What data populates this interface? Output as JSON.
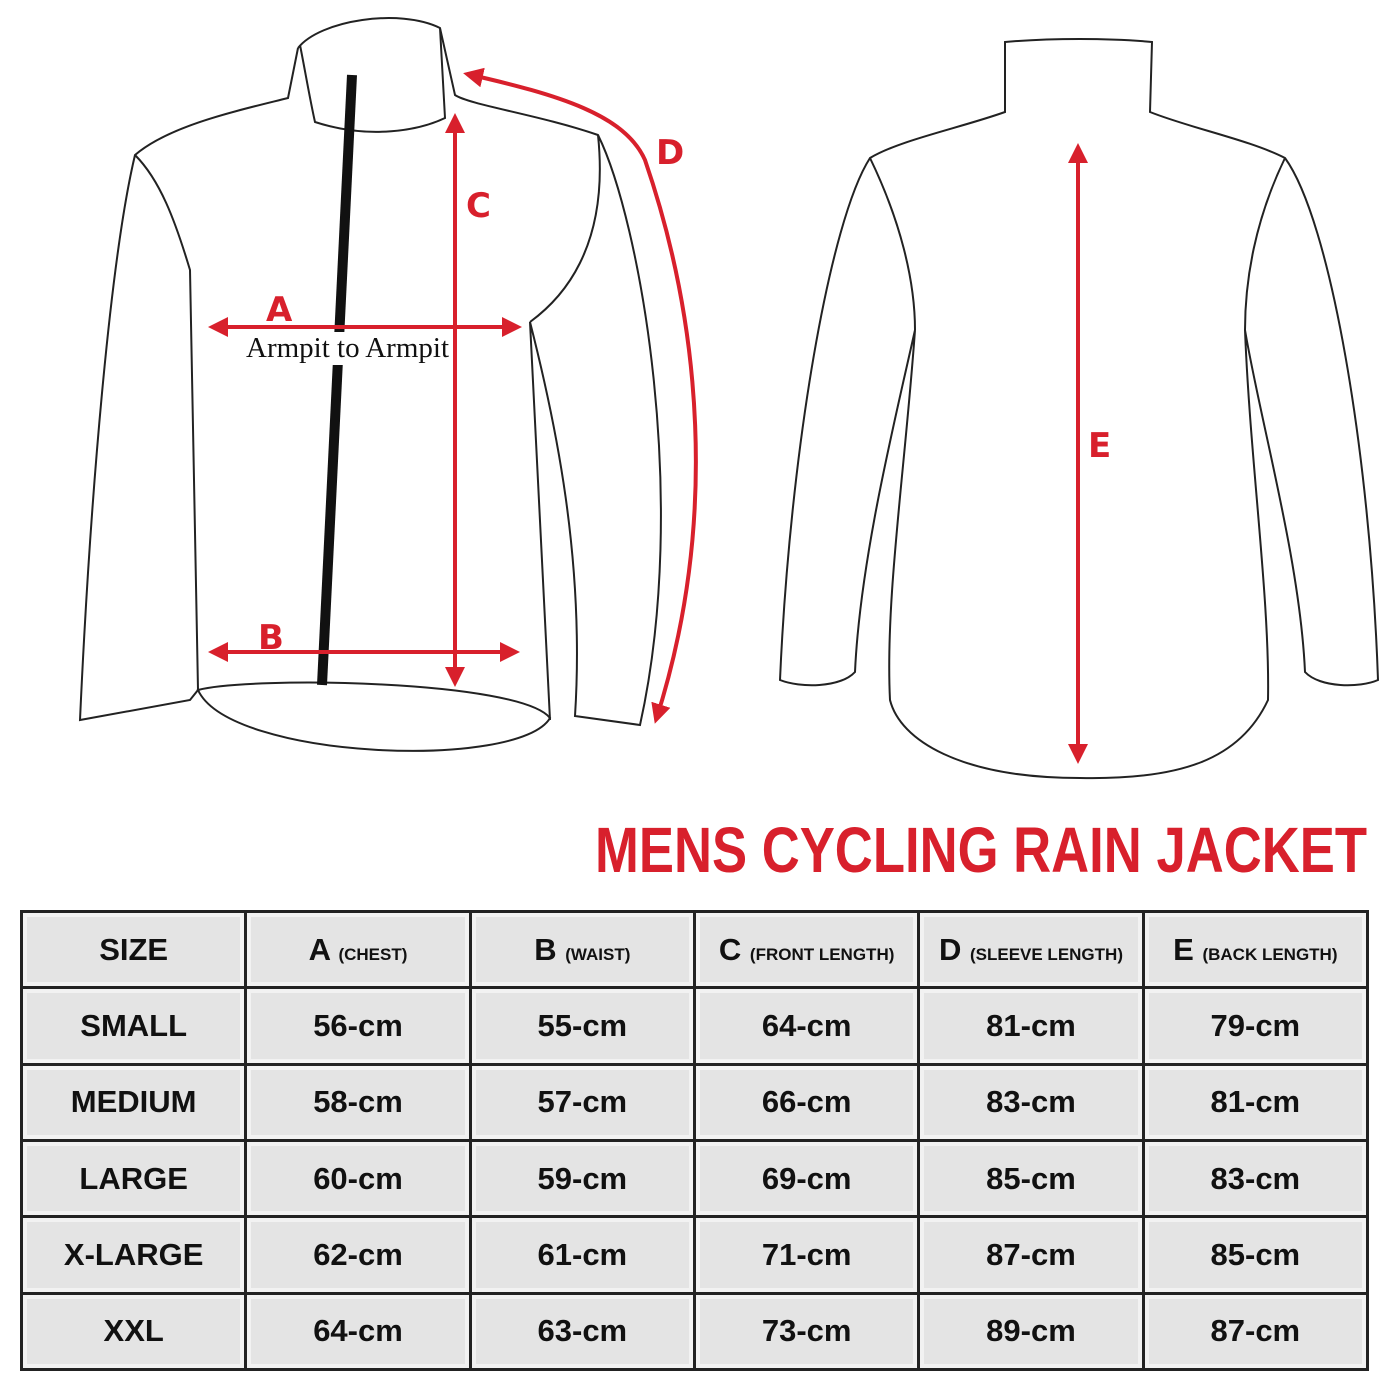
{
  "title": "MENS CYCLING RAIN JACKET",
  "colors": {
    "accent": "#d8202c",
    "cell": "#e4e4e4",
    "outline": "#222222"
  },
  "diagram": {
    "labels": {
      "a": "A",
      "b": "B",
      "c": "C",
      "d": "D",
      "e": "E"
    },
    "armpit_note": "Armpit to Armpit"
  },
  "table": {
    "headers": [
      {
        "letter": "SIZE",
        "desc": ""
      },
      {
        "letter": "A",
        "desc": "(CHEST)"
      },
      {
        "letter": "B",
        "desc": "(WAIST)"
      },
      {
        "letter": "C",
        "desc": "(FRONT LENGTH)"
      },
      {
        "letter": "D",
        "desc": "(SLEEVE LENGTH)"
      },
      {
        "letter": "E",
        "desc": "(BACK LENGTH)"
      }
    ],
    "rows": [
      [
        "SMALL",
        "56-cm",
        "55-cm",
        "64-cm",
        "81-cm",
        "79-cm"
      ],
      [
        "MEDIUM",
        "58-cm",
        "57-cm",
        "66-cm",
        "83-cm",
        "81-cm"
      ],
      [
        "LARGE",
        "60-cm",
        "59-cm",
        "69-cm",
        "85-cm",
        "83-cm"
      ],
      [
        "X-LARGE",
        "62-cm",
        "61-cm",
        "71-cm",
        "87-cm",
        "85-cm"
      ],
      [
        "XXL",
        "64-cm",
        "63-cm",
        "73-cm",
        "89-cm",
        "87-cm"
      ]
    ]
  }
}
